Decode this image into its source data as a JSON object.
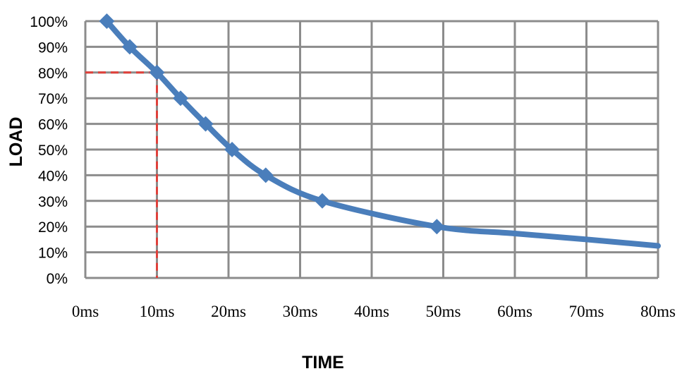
{
  "chart_data": {
    "type": "line",
    "title": "",
    "xlabel": "TIME",
    "ylabel": "LOAD",
    "xlim": [
      0,
      80
    ],
    "ylim": [
      0,
      100
    ],
    "x_tick_labels": [
      "0ms",
      "10ms",
      "20ms",
      "30ms",
      "40ms",
      "50ms",
      "60ms",
      "70ms",
      "80ms"
    ],
    "y_tick_labels": [
      "0%",
      "10%",
      "20%",
      "30%",
      "40%",
      "50%",
      "60%",
      "70%",
      "80%",
      "90%",
      "100%"
    ],
    "grid": true,
    "legend": "none",
    "series": [
      {
        "color": "#4a7ebb",
        "marker": "diamond",
        "points": [
          {
            "x": 3,
            "y": 100
          },
          {
            "x": 6.2,
            "y": 90
          },
          {
            "x": 10,
            "y": 80
          },
          {
            "x": 13.3,
            "y": 70
          },
          {
            "x": 16.8,
            "y": 60
          },
          {
            "x": 20.5,
            "y": 50
          },
          {
            "x": 25.2,
            "y": 40
          },
          {
            "x": 33.1,
            "y": 30
          },
          {
            "x": 49.1,
            "y": 20
          }
        ],
        "curve_tail": [
          {
            "x": 60,
            "y": 17.3
          },
          {
            "x": 70,
            "y": 15
          },
          {
            "x": 80,
            "y": 12.5
          }
        ]
      }
    ],
    "reference_lines": {
      "color": "#e0403a",
      "style": "dashed",
      "x": 10,
      "y": 80
    },
    "grid_color": "#8c8c8c"
  }
}
